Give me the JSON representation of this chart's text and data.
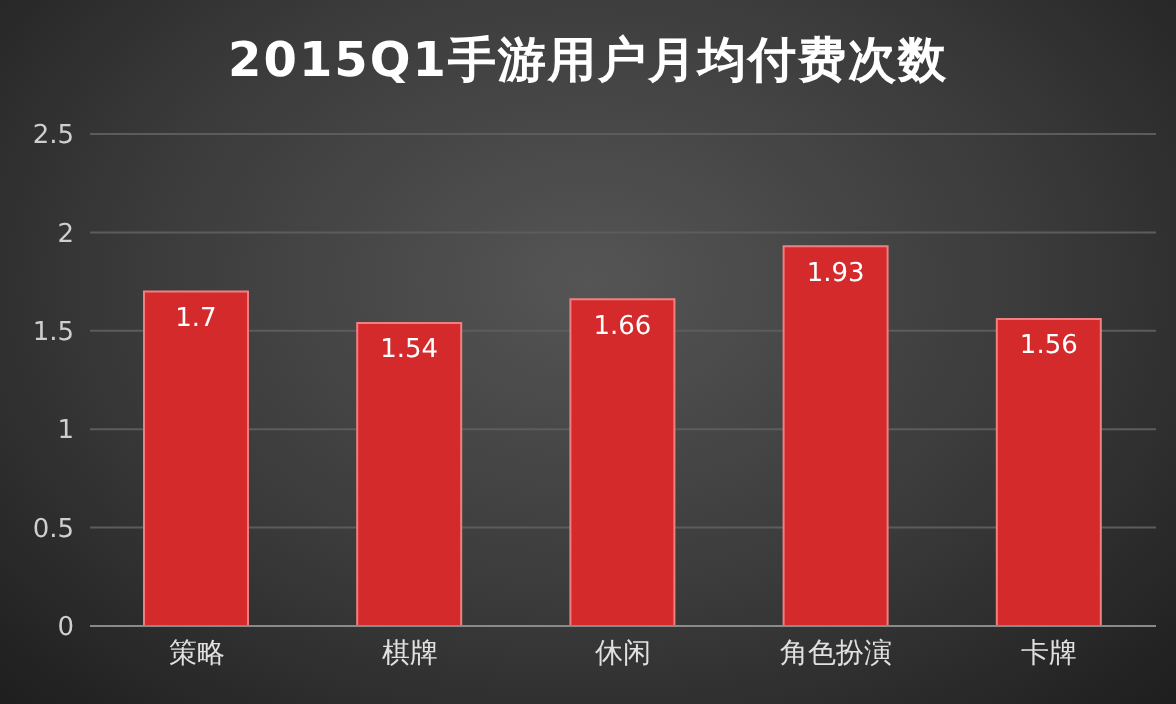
{
  "chart_data": {
    "type": "bar",
    "title": "2015Q1手游用户月均付费次数",
    "categories": [
      "策略",
      "棋牌",
      "休闲",
      "角色扮演",
      "卡牌"
    ],
    "values": [
      1.7,
      1.54,
      1.66,
      1.93,
      1.56
    ],
    "color": "#d42a2c",
    "ylim": [
      0,
      2.5
    ],
    "yticks": [
      0,
      0.5,
      1,
      1.5,
      2,
      2.5
    ],
    "grid": "y",
    "data_labels": true
  }
}
